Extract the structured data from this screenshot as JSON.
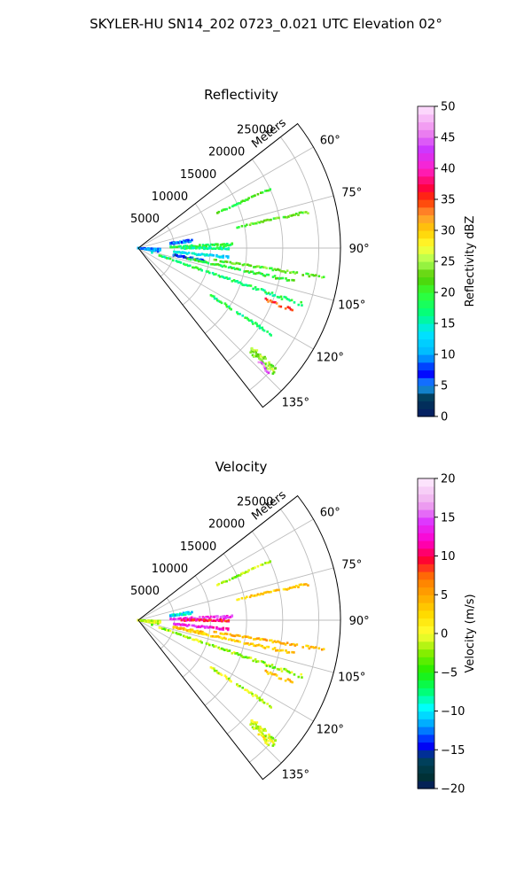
{
  "title": "SKYLER-HU  SN14_202  0723_0.021 UTC Elevation 02°",
  "chart_data": [
    {
      "type": "heatmap",
      "subtype": "polar-sector (radar PPI)",
      "title": "Reflectivity",
      "range_label": "Meters",
      "range_ticks": [
        "5000",
        "10000",
        "15000",
        "20000",
        "25000"
      ],
      "range_values": [
        5000,
        10000,
        15000,
        20000,
        25000
      ],
      "rmax": 28000,
      "azimuth_range_deg": [
        52,
        142
      ],
      "azimuth_ticks": [
        "60°",
        "75°",
        "90°",
        "105°",
        "120°",
        "135°"
      ],
      "azimuth_values": [
        60,
        75,
        90,
        105,
        120,
        135
      ],
      "colorbar": {
        "label": "Reflectivity dBZ",
        "min": 0,
        "max": 50,
        "ticks": [
          "0",
          "5",
          "10",
          "15",
          "20",
          "25",
          "30",
          "35",
          "40",
          "45",
          "50"
        ],
        "tick_values": [
          0,
          5,
          10,
          15,
          20,
          25,
          30,
          35,
          40,
          45,
          50
        ]
      },
      "echoes": [
        {
          "az": 96,
          "r": [
            0,
            3000
          ],
          "width": 8,
          "value": 10
        },
        {
          "az": 82,
          "r": [
            4500,
            7500
          ],
          "width": 2.5,
          "value": 8
        },
        {
          "az": 88,
          "r": [
            4500,
            13000
          ],
          "width": 1.8,
          "value": 19
        },
        {
          "az": 90,
          "r": [
            6000,
            12500
          ],
          "width": 1.5,
          "value": 17
        },
        {
          "az": 96,
          "r": [
            5000,
            12500
          ],
          "width": 1.5,
          "value": 13
        },
        {
          "az": 101,
          "r": [
            5000,
            9500
          ],
          "width": 2.0,
          "value": 6
        },
        {
          "az": 109,
          "r": [
            2000,
            24000
          ],
          "width": 1.2,
          "value": 18
        },
        {
          "az": 102,
          "r": [
            7000,
            22000
          ],
          "width": 1.0,
          "value": 20
        },
        {
          "az": 99,
          "r": [
            10000,
            26000
          ],
          "width": 0.8,
          "value": 22
        },
        {
          "az": 78,
          "r": [
            14000,
            24000
          ],
          "width": 0.8,
          "value": 22
        },
        {
          "az": 123,
          "r": [
            12000,
            22000
          ],
          "width": 1.0,
          "value": 18
        },
        {
          "az": 132,
          "r": [
            21000,
            25500
          ],
          "width": 2.5,
          "value": 24
        },
        {
          "az": 133.5,
          "r": [
            23000,
            25000
          ],
          "width": 1.2,
          "value": 45
        },
        {
          "az": 112,
          "r": [
            19000,
            23000
          ],
          "width": 1.0,
          "value": 35
        },
        {
          "az": 66,
          "r": [
            12000,
            20000
          ],
          "width": 0.7,
          "value": 20
        }
      ]
    },
    {
      "type": "heatmap",
      "subtype": "polar-sector (radar PPI)",
      "title": "Velocity",
      "range_label": "Meters",
      "range_ticks": [
        "5000",
        "10000",
        "15000",
        "20000",
        "25000"
      ],
      "range_values": [
        5000,
        10000,
        15000,
        20000,
        25000
      ],
      "rmax": 28000,
      "azimuth_range_deg": [
        52,
        142
      ],
      "azimuth_ticks": [
        "60°",
        "75°",
        "90°",
        "105°",
        "120°",
        "135°"
      ],
      "azimuth_values": [
        60,
        75,
        90,
        105,
        120,
        135
      ],
      "colorbar": {
        "label": "Velocity (m/s)",
        "min": -20,
        "max": 20,
        "ticks": [
          "−20",
          "−15",
          "−10",
          "−5",
          "0",
          "5",
          "10",
          "15",
          "20"
        ],
        "tick_values": [
          -20,
          -15,
          -10,
          -5,
          0,
          5,
          10,
          15,
          20
        ]
      },
      "echoes": [
        {
          "az": 96,
          "r": [
            0,
            3000
          ],
          "width": 8,
          "value": -1
        },
        {
          "az": 82,
          "r": [
            4500,
            7500
          ],
          "width": 2.5,
          "value": -10
        },
        {
          "az": 88,
          "r": [
            4500,
            13000
          ],
          "width": 1.8,
          "value": 14
        },
        {
          "az": 90,
          "r": [
            6000,
            12500
          ],
          "width": 1.5,
          "value": 10
        },
        {
          "az": 96,
          "r": [
            5000,
            12500
          ],
          "width": 1.5,
          "value": 13
        },
        {
          "az": 101,
          "r": [
            5000,
            9500
          ],
          "width": 2.0,
          "value": 4
        },
        {
          "az": 109,
          "r": [
            2000,
            24000
          ],
          "width": 1.2,
          "value": -2
        },
        {
          "az": 102,
          "r": [
            7000,
            22000
          ],
          "width": 1.0,
          "value": 3
        },
        {
          "az": 99,
          "r": [
            10000,
            26000
          ],
          "width": 0.8,
          "value": 4
        },
        {
          "az": 78,
          "r": [
            14000,
            24000
          ],
          "width": 0.8,
          "value": 3
        },
        {
          "az": 123,
          "r": [
            12000,
            22000
          ],
          "width": 1.0,
          "value": -1
        },
        {
          "az": 132,
          "r": [
            21000,
            25500
          ],
          "width": 2.5,
          "value": -1
        },
        {
          "az": 133.5,
          "r": [
            23000,
            25000
          ],
          "width": 1.2,
          "value": 1
        },
        {
          "az": 112,
          "r": [
            19000,
            23000
          ],
          "width": 1.0,
          "value": 4
        },
        {
          "az": 66,
          "r": [
            12000,
            20000
          ],
          "width": 0.7,
          "value": -2
        }
      ]
    }
  ]
}
